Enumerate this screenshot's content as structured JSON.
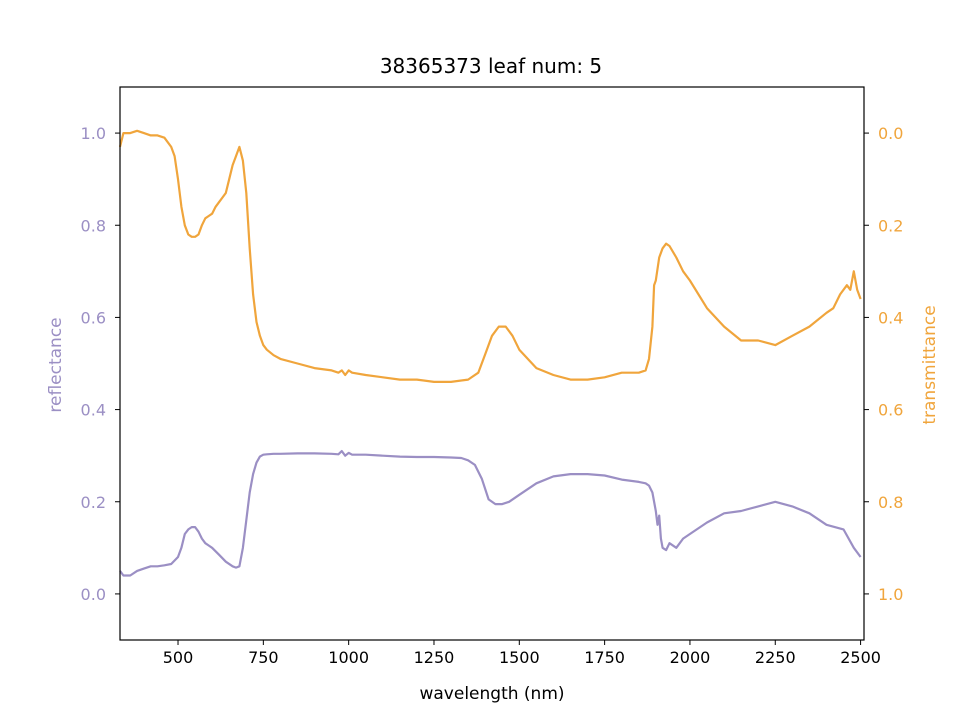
{
  "chart_data": {
    "type": "line",
    "title": "38365373 leaf num: 5",
    "xlabel": "wavelength (nm)",
    "ylabel_left": "reflectance",
    "ylabel_right": "transmittance",
    "xlim": [
      330,
      2510
    ],
    "ylim_left": [
      -0.1,
      1.1
    ],
    "ylim_right": [
      1.1,
      -0.1
    ],
    "right_axis_inverted": true,
    "x_ticks": [
      "500",
      "750",
      "1000",
      "1250",
      "1500",
      "1750",
      "2000",
      "2250",
      "2500"
    ],
    "left_ticks": [
      "0.0",
      "0.2",
      "0.4",
      "0.6",
      "0.8",
      "1.0"
    ],
    "right_ticks": [
      "0.0",
      "0.2",
      "0.4",
      "0.6",
      "0.8",
      "1.0"
    ],
    "grid": false,
    "colors": {
      "reflectance": "#9b8fc4",
      "transmittance": "#f0a53c"
    },
    "series": [
      {
        "axis": "left",
        "x": [
          330,
          340,
          360,
          380,
          400,
          420,
          440,
          460,
          480,
          500,
          510,
          520,
          530,
          540,
          550,
          560,
          570,
          580,
          590,
          600,
          620,
          640,
          660,
          670,
          680,
          690,
          700,
          710,
          720,
          730,
          740,
          750,
          760,
          780,
          800,
          850,
          900,
          950,
          970,
          980,
          990,
          1000,
          1010,
          1050,
          1100,
          1150,
          1200,
          1250,
          1300,
          1330,
          1350,
          1370,
          1390,
          1410,
          1430,
          1450,
          1470,
          1500,
          1550,
          1600,
          1650,
          1700,
          1750,
          1800,
          1850,
          1870,
          1880,
          1890,
          1900,
          1905,
          1910,
          1915,
          1920,
          1930,
          1940,
          1960,
          1980,
          2000,
          2050,
          2100,
          2150,
          2200,
          2250,
          2300,
          2350,
          2400,
          2450,
          2480,
          2500
        ],
        "y": [
          0.05,
          0.04,
          0.04,
          0.05,
          0.055,
          0.06,
          0.06,
          0.062,
          0.065,
          0.08,
          0.1,
          0.13,
          0.14,
          0.145,
          0.145,
          0.135,
          0.12,
          0.11,
          0.105,
          0.1,
          0.085,
          0.07,
          0.06,
          0.057,
          0.06,
          0.1,
          0.16,
          0.22,
          0.26,
          0.285,
          0.298,
          0.302,
          0.303,
          0.304,
          0.304,
          0.305,
          0.305,
          0.304,
          0.303,
          0.31,
          0.3,
          0.306,
          0.302,
          0.302,
          0.3,
          0.298,
          0.297,
          0.297,
          0.296,
          0.295,
          0.29,
          0.28,
          0.25,
          0.205,
          0.195,
          0.195,
          0.2,
          0.215,
          0.24,
          0.255,
          0.26,
          0.26,
          0.257,
          0.248,
          0.243,
          0.24,
          0.235,
          0.22,
          0.18,
          0.15,
          0.17,
          0.12,
          0.1,
          0.095,
          0.11,
          0.1,
          0.12,
          0.13,
          0.155,
          0.175,
          0.18,
          0.19,
          0.2,
          0.19,
          0.175,
          0.15,
          0.14,
          0.1,
          0.08
        ]
      },
      {
        "axis": "right",
        "x": [
          330,
          340,
          360,
          380,
          400,
          420,
          440,
          460,
          480,
          490,
          500,
          510,
          520,
          530,
          540,
          550,
          560,
          570,
          580,
          590,
          600,
          610,
          620,
          630,
          640,
          650,
          660,
          670,
          680,
          690,
          700,
          710,
          720,
          730,
          740,
          750,
          760,
          780,
          800,
          850,
          900,
          950,
          970,
          980,
          990,
          1000,
          1010,
          1050,
          1100,
          1150,
          1200,
          1250,
          1300,
          1350,
          1380,
          1400,
          1420,
          1440,
          1460,
          1480,
          1500,
          1550,
          1600,
          1650,
          1700,
          1750,
          1800,
          1850,
          1870,
          1880,
          1890,
          1895,
          1900,
          1910,
          1920,
          1930,
          1940,
          1960,
          1980,
          2000,
          2050,
          2100,
          2150,
          2200,
          2250,
          2300,
          2350,
          2400,
          2420,
          2440,
          2460,
          2470,
          2480,
          2490,
          2500
        ],
        "y": [
          0.03,
          0.0,
          0.0,
          -0.005,
          0.0,
          0.005,
          0.005,
          0.01,
          0.03,
          0.05,
          0.1,
          0.16,
          0.2,
          0.22,
          0.225,
          0.225,
          0.22,
          0.2,
          0.185,
          0.18,
          0.175,
          0.16,
          0.15,
          0.14,
          0.13,
          0.1,
          0.07,
          0.05,
          0.03,
          0.06,
          0.13,
          0.25,
          0.35,
          0.41,
          0.44,
          0.46,
          0.47,
          0.482,
          0.49,
          0.5,
          0.51,
          0.515,
          0.52,
          0.515,
          0.525,
          0.515,
          0.52,
          0.525,
          0.53,
          0.535,
          0.535,
          0.54,
          0.54,
          0.535,
          0.52,
          0.48,
          0.44,
          0.42,
          0.42,
          0.44,
          0.47,
          0.51,
          0.525,
          0.535,
          0.535,
          0.53,
          0.52,
          0.52,
          0.515,
          0.49,
          0.42,
          0.33,
          0.32,
          0.27,
          0.25,
          0.24,
          0.245,
          0.27,
          0.3,
          0.32,
          0.38,
          0.42,
          0.45,
          0.45,
          0.46,
          0.44,
          0.42,
          0.39,
          0.38,
          0.35,
          0.33,
          0.34,
          0.3,
          0.34,
          0.36
        ]
      }
    ]
  }
}
